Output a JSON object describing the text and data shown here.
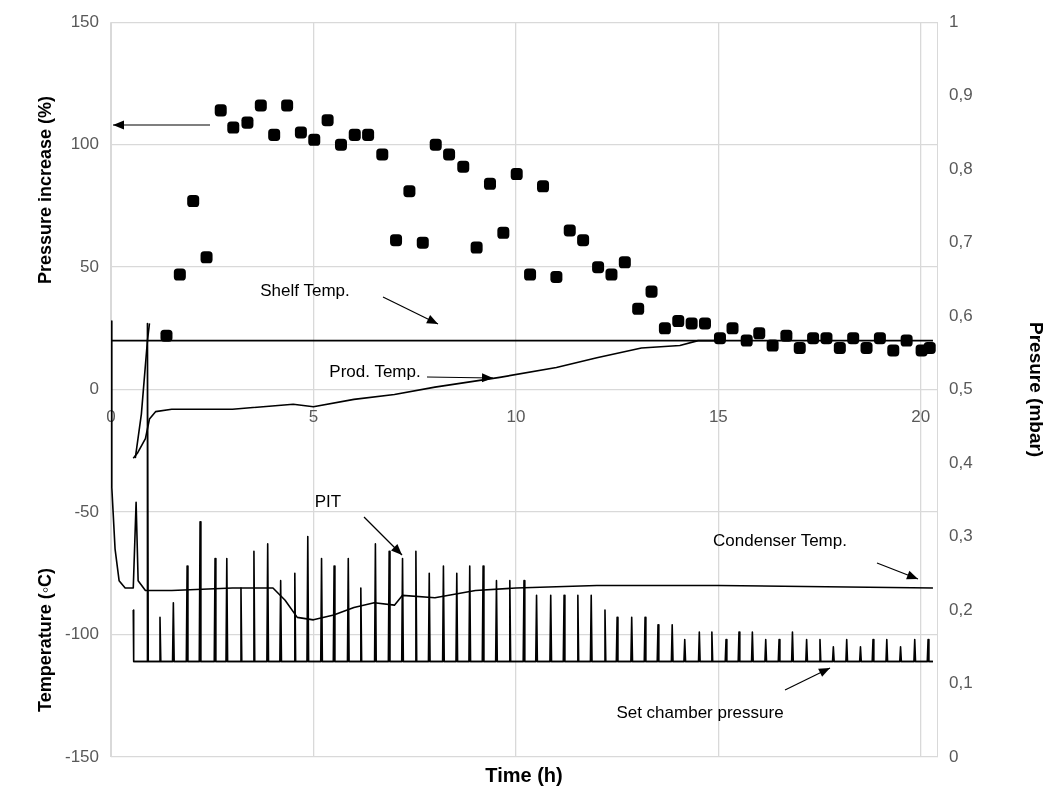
{
  "chart_data": {
    "type": "line",
    "xlabel": "Time (h)",
    "ylabel": "Temperature (◦C)",
    "y2label": "Presure (mbar)",
    "xlim": [
      0,
      20.4
    ],
    "xticks": [
      0,
      5,
      10,
      15,
      20
    ],
    "ylim": [
      -150,
      150
    ],
    "yticks": [
      -150,
      -100,
      -50,
      0,
      50,
      100,
      150
    ],
    "y2lim": [
      0,
      1
    ],
    "y2ticks": [
      0,
      {
        "value": 0.1,
        "label": "0,1"
      },
      {
        "value": 0.2,
        "label": "0,2"
      },
      {
        "value": 0.3,
        "label": "0,3"
      },
      {
        "value": 0.4,
        "label": "0,4"
      },
      {
        "value": 0.5,
        "label": "0,5"
      },
      {
        "value": 0.6,
        "label": "0,6"
      },
      {
        "value": 0.7,
        "label": "0,7"
      },
      {
        "value": 0.8,
        "label": "0,8"
      },
      {
        "value": 0.9,
        "label": "0,9"
      },
      1
    ],
    "grid": true,
    "legend": false,
    "series": [
      {
        "type": "scatter",
        "marker": "square",
        "color": "#000000",
        "x": [
          1.37,
          1.7,
          2.03,
          2.36,
          2.71,
          3.02,
          3.37,
          3.7,
          4.03,
          4.35,
          4.69,
          5.02,
          5.35,
          5.68,
          6.02,
          6.35,
          6.7,
          7.04,
          7.37,
          7.7,
          8.02,
          8.35,
          8.7,
          9.03,
          9.36,
          9.69,
          10.02,
          10.35,
          10.67,
          11.0,
          11.33,
          11.66,
          12.03,
          12.36,
          12.69,
          13.02,
          13.35,
          13.68,
          14.01,
          14.34,
          14.67,
          15.04,
          15.35,
          15.7,
          16.01,
          16.34,
          16.68,
          17.01,
          17.34,
          17.67,
          18.0,
          18.33,
          18.66,
          18.99,
          19.32,
          19.65,
          20.02,
          20.22
        ],
        "values": [
          22,
          47,
          77,
          54,
          114,
          107,
          109,
          116,
          104,
          116,
          105,
          102,
          110,
          100,
          104,
          104,
          96,
          61,
          81,
          60,
          100,
          96,
          91,
          58,
          84,
          64,
          88,
          47,
          83,
          46,
          65,
          61,
          50,
          47,
          52,
          33,
          40,
          25,
          28,
          27,
          27,
          21,
          25,
          20,
          23,
          18,
          22,
          17,
          21,
          21,
          17,
          21,
          17,
          21,
          16,
          20,
          16,
          17
        ]
      },
      {
        "type": "line",
        "color": "#000000",
        "x": [
          0,
          20.3
        ],
        "values": [
          20,
          20
        ]
      },
      {
        "type": "line",
        "color": "#000000",
        "x": [
          0.55,
          0.65,
          0.85,
          0.95,
          1.1,
          1.5,
          3,
          4.5,
          5,
          6,
          7,
          8,
          9.6,
          11,
          12,
          13.1,
          14.05,
          14.5,
          15
        ],
        "values": [
          -28,
          -26,
          -20,
          -12,
          -9,
          -8,
          -8,
          -6,
          -7,
          -4,
          -2,
          1,
          5,
          9,
          13,
          17,
          18,
          20,
          20
        ]
      },
      {
        "type": "line",
        "color": "#000000",
        "x": [
          0.6,
          0.75,
          0.9,
          0.95
        ],
        "values": [
          -28,
          -10,
          20,
          27
        ]
      },
      {
        "type": "line",
        "color": "#000000",
        "x": [
          0,
          0.02,
          0.1,
          0.2,
          0.35,
          0.55,
          0.62,
          0.67,
          0.85,
          1.5,
          3,
          4,
          4.3,
          4.6,
          5,
          5.5,
          6,
          6.5,
          7,
          7.2,
          8,
          9,
          10,
          12,
          15,
          20.3
        ],
        "values": [
          28,
          -40,
          -65,
          -78,
          -81,
          -81,
          -46,
          -78,
          -82,
          -82,
          -81,
          -81,
          -86,
          -93,
          -94,
          -92,
          -89,
          -87,
          -88,
          -84,
          -85,
          -82,
          -81,
          -80,
          -80,
          -81
        ]
      },
      {
        "type": "line",
        "axis": "y2",
        "color": "#000000",
        "x": [
          0.55,
          20.3
        ],
        "values": [
          0.13,
          0.13
        ]
      },
      {
        "type": "line",
        "axis": "y2",
        "color": "#000000",
        "x": [
          0.55,
          0.56,
          0.89,
          0.9,
          0.92,
          1.19,
          1.21,
          1.23,
          1.52,
          1.54,
          1.56,
          1.86,
          1.88,
          1.9,
          2.18,
          2.2,
          2.22,
          2.55,
          2.57,
          2.59,
          2.84,
          2.86,
          2.88,
          3.19,
          3.21,
          3.23,
          3.51,
          3.53,
          3.55,
          3.85,
          3.87,
          3.89,
          4.17,
          4.19,
          4.21,
          4.52,
          4.54,
          4.56,
          4.84,
          4.86,
          4.88,
          5.18,
          5.2,
          5.22,
          5.49,
          5.51,
          5.53,
          5.84,
          5.86,
          5.88,
          6.15,
          6.17,
          6.19,
          6.51,
          6.53,
          6.55,
          6.85,
          6.87,
          6.89,
          7.18,
          7.2,
          7.22,
          7.51,
          7.53,
          7.55,
          7.84,
          7.86,
          7.88,
          8.19,
          8.21,
          8.23,
          8.52,
          8.54,
          8.56,
          8.84,
          8.86,
          8.88,
          9.17,
          9.19,
          9.21,
          9.5,
          9.52,
          9.54,
          9.83,
          9.85,
          9.87,
          10.18,
          10.2,
          10.22,
          10.49,
          10.51,
          10.53,
          10.84,
          10.86,
          10.88,
          11.17,
          11.19,
          11.21,
          11.51,
          11.53,
          11.55,
          11.84,
          11.86,
          11.88,
          12.18,
          12.2,
          12.22,
          12.48,
          12.5,
          12.52,
          12.84,
          12.86,
          12.88,
          13.17,
          13.19,
          13.21,
          13.49,
          13.51,
          13.53,
          13.84,
          13.86,
          13.88,
          14.15,
          14.17,
          14.19,
          14.51,
          14.53,
          14.55,
          14.82,
          14.84,
          14.86,
          15.17,
          15.19,
          15.21,
          15.49,
          15.51,
          15.53,
          15.82,
          15.84,
          15.86,
          16.15,
          16.17,
          16.19,
          16.48,
          16.5,
          16.52,
          16.81,
          16.83,
          16.85,
          17.16,
          17.18,
          17.2,
          17.49,
          17.51,
          17.53,
          17.82,
          17.84,
          17.86,
          18.15,
          18.17,
          18.19,
          18.49,
          18.51,
          18.53,
          18.8,
          18.82,
          18.84,
          19.14,
          19.16,
          19.18,
          19.48,
          19.5,
          19.52,
          19.83,
          19.85,
          19.87,
          20.16,
          20.18,
          20.2,
          20.3
        ],
        "values": [
          0.2,
          0.13,
          0.13,
          0.59,
          0.13,
          0.13,
          0.19,
          0.13,
          0.13,
          0.21,
          0.13,
          0.13,
          0.26,
          0.13,
          0.13,
          0.32,
          0.13,
          0.13,
          0.27,
          0.13,
          0.13,
          0.27,
          0.13,
          0.13,
          0.23,
          0.13,
          0.13,
          0.28,
          0.13,
          0.13,
          0.29,
          0.13,
          0.13,
          0.24,
          0.13,
          0.13,
          0.25,
          0.13,
          0.13,
          0.3,
          0.13,
          0.13,
          0.27,
          0.13,
          0.13,
          0.26,
          0.13,
          0.13,
          0.27,
          0.13,
          0.13,
          0.23,
          0.13,
          0.13,
          0.29,
          0.13,
          0.13,
          0.28,
          0.13,
          0.13,
          0.27,
          0.13,
          0.13,
          0.28,
          0.13,
          0.13,
          0.25,
          0.13,
          0.13,
          0.26,
          0.13,
          0.13,
          0.25,
          0.13,
          0.13,
          0.26,
          0.13,
          0.13,
          0.26,
          0.13,
          0.13,
          0.24,
          0.13,
          0.13,
          0.24,
          0.13,
          0.13,
          0.24,
          0.13,
          0.13,
          0.22,
          0.13,
          0.13,
          0.22,
          0.13,
          0.13,
          0.22,
          0.13,
          0.13,
          0.22,
          0.13,
          0.13,
          0.22,
          0.13,
          0.13,
          0.2,
          0.13,
          0.13,
          0.19,
          0.13,
          0.13,
          0.19,
          0.13,
          0.13,
          0.19,
          0.13,
          0.13,
          0.18,
          0.13,
          0.13,
          0.18,
          0.13,
          0.13,
          0.16,
          0.13,
          0.13,
          0.17,
          0.13,
          0.13,
          0.17,
          0.13,
          0.13,
          0.16,
          0.13,
          0.13,
          0.17,
          0.13,
          0.13,
          0.17,
          0.13,
          0.13,
          0.16,
          0.13,
          0.13,
          0.16,
          0.13,
          0.13,
          0.17,
          0.13,
          0.13,
          0.16,
          0.13,
          0.13,
          0.16,
          0.13,
          0.13,
          0.15,
          0.13,
          0.13,
          0.16,
          0.13,
          0.13,
          0.15,
          0.13,
          0.13,
          0.16,
          0.13,
          0.13,
          0.16,
          0.13,
          0.13,
          0.15,
          0.13,
          0.13,
          0.16,
          0.13,
          0.13,
          0.16,
          0.13,
          0.13
        ]
      }
    ],
    "annotations": [
      "Pressure increase (%)",
      "Shelf Temp.",
      "Prod. Temp.",
      "PIT",
      "Condenser Temp.",
      "Set chamber pressure"
    ]
  }
}
